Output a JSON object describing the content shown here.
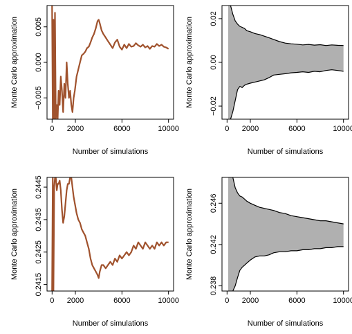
{
  "chart_data": [
    {
      "type": "line",
      "panel": "top-left",
      "xlabel": "Number of simulations",
      "ylabel": "Monte Carlo approximation",
      "xlim": [
        0,
        10000
      ],
      "ylim": [
        -0.008,
        0.008
      ],
      "xticks": [
        0,
        2000,
        6000,
        10000
      ],
      "xtick_labels": [
        "0",
        "2000",
        "6000",
        "10000"
      ],
      "yticks": [
        -0.005,
        0.0,
        0.005
      ],
      "ytick_labels": [
        "−0.005",
        "0.000",
        "0.005"
      ],
      "series": [
        {
          "color": "#A0522D",
          "x": [
            0,
            60,
            120,
            180,
            250,
            320,
            400,
            480,
            560,
            650,
            750,
            850,
            950,
            1050,
            1150,
            1250,
            1350,
            1450,
            1550,
            1650,
            1750,
            1850,
            1950,
            2100,
            2250,
            2400,
            2550,
            2700,
            2850,
            3000,
            3150,
            3300,
            3450,
            3600,
            3750,
            3900,
            4000,
            4100,
            4250,
            4400,
            4600,
            4800,
            5000,
            5200,
            5400,
            5600,
            5800,
            6000,
            6200,
            6400,
            6600,
            6800,
            7000,
            7200,
            7400,
            7600,
            7800,
            8000,
            8200,
            8400,
            8600,
            8800,
            9000,
            9200,
            9400,
            9600,
            9800,
            10000
          ],
          "values": [
            0.008,
            -0.008,
            0.006,
            -0.008,
            0.007,
            -0.008,
            -0.006,
            -0.008,
            -0.004,
            -0.006,
            -0.002,
            -0.004,
            -0.007,
            -0.003,
            -0.005,
            0.0,
            -0.003,
            -0.005,
            -0.004,
            -0.006,
            -0.007,
            -0.005,
            -0.004,
            -0.002,
            -0.001,
            0.0,
            0.001,
            0.0012,
            0.0015,
            0.002,
            0.0022,
            0.0028,
            0.0035,
            0.004,
            0.0048,
            0.0058,
            0.006,
            0.0055,
            0.0045,
            0.004,
            0.0035,
            0.003,
            0.0025,
            0.002,
            0.0028,
            0.0032,
            0.0022,
            0.0018,
            0.0025,
            0.002,
            0.0026,
            0.0022,
            0.0023,
            0.0027,
            0.0024,
            0.0022,
            0.0025,
            0.0021,
            0.0023,
            0.0019,
            0.0023,
            0.0022,
            0.0026,
            0.0023,
            0.0025,
            0.0022,
            0.0021,
            0.0019
          ]
        }
      ]
    },
    {
      "type": "area",
      "panel": "top-right",
      "xlabel": "Number of simulations",
      "ylabel": "Monte Carlo approximation",
      "xlim": [
        0,
        10000
      ],
      "ylim": [
        -0.026,
        0.026
      ],
      "xticks": [
        0,
        2000,
        6000,
        10000
      ],
      "xtick_labels": [
        "0",
        "2000",
        "6000",
        "10000"
      ],
      "yticks": [
        -0.02,
        0.0,
        0.02
      ],
      "ytick_labels": [
        "−0.02",
        "0.00",
        "0.02"
      ],
      "band": {
        "fill": "#B0B0B0",
        "x": [
          100,
          300,
          500,
          700,
          900,
          1100,
          1300,
          1500,
          1700,
          2000,
          2400,
          2800,
          3200,
          3600,
          4000,
          4500,
          5000,
          5500,
          6000,
          6500,
          7000,
          7500,
          8000,
          8500,
          9000,
          9500,
          10000
        ],
        "upper": [
          0.03,
          0.026,
          0.022,
          0.019,
          0.0175,
          0.0165,
          0.016,
          0.0155,
          0.0145,
          0.014,
          0.0132,
          0.0127,
          0.012,
          0.0113,
          0.0105,
          0.0095,
          0.0088,
          0.0085,
          0.0083,
          0.008,
          0.0082,
          0.0079,
          0.0081,
          0.0077,
          0.008,
          0.0078,
          0.0077
        ],
        "lower": [
          -0.03,
          -0.026,
          -0.0225,
          -0.0175,
          -0.0125,
          -0.011,
          -0.0115,
          -0.0105,
          -0.01,
          -0.0095,
          -0.009,
          -0.0085,
          -0.008,
          -0.007,
          -0.0058,
          -0.0055,
          -0.0052,
          -0.0048,
          -0.0046,
          -0.0043,
          -0.0046,
          -0.0041,
          -0.0043,
          -0.0037,
          -0.0034,
          -0.0037,
          -0.0041
        ]
      }
    },
    {
      "type": "line",
      "panel": "bottom-left",
      "xlabel": "Number of simulations",
      "ylabel": "Monte Carlo approximation",
      "xlim": [
        0,
        10000
      ],
      "ylim": [
        0.2413,
        0.2448
      ],
      "xticks": [
        0,
        2000,
        6000,
        10000
      ],
      "xtick_labels": [
        "0",
        "2000",
        "6000",
        "10000"
      ],
      "yticks": [
        0.2415,
        0.2425,
        0.2435,
        0.2445
      ],
      "ytick_labels": [
        "0.2415",
        "0.2425",
        "0.2435",
        "0.2445"
      ],
      "series": [
        {
          "color": "#A0522D",
          "x": [
            0,
            60,
            120,
            180,
            250,
            320,
            400,
            480,
            560,
            650,
            750,
            850,
            950,
            1050,
            1150,
            1250,
            1350,
            1450,
            1550,
            1650,
            1750,
            1850,
            1950,
            2100,
            2250,
            2400,
            2550,
            2700,
            2850,
            3000,
            3150,
            3300,
            3450,
            3600,
            3750,
            3900,
            4000,
            4100,
            4250,
            4400,
            4600,
            4800,
            5000,
            5200,
            5400,
            5600,
            5800,
            6000,
            6200,
            6400,
            6600,
            6800,
            7000,
            7200,
            7400,
            7600,
            7800,
            8000,
            8200,
            8400,
            8600,
            8800,
            9000,
            9200,
            9400,
            9600,
            9800,
            10000
          ],
          "values": [
            0.2413,
            0.2448,
            0.2413,
            0.2445,
            0.2448,
            0.2448,
            0.2444,
            0.2446,
            0.2446,
            0.2447,
            0.2444,
            0.2438,
            0.2434,
            0.2436,
            0.244,
            0.2444,
            0.2446,
            0.2446,
            0.2448,
            0.2448,
            0.2445,
            0.2442,
            0.244,
            0.2437,
            0.2435,
            0.2434,
            0.2432,
            0.2431,
            0.243,
            0.2428,
            0.2426,
            0.2423,
            0.2421,
            0.242,
            0.2419,
            0.2418,
            0.2417,
            0.2419,
            0.2421,
            0.2421,
            0.242,
            0.2421,
            0.2422,
            0.2421,
            0.2423,
            0.2422,
            0.2424,
            0.2423,
            0.2424,
            0.2425,
            0.2424,
            0.2425,
            0.2427,
            0.2426,
            0.2428,
            0.2427,
            0.2426,
            0.2428,
            0.2427,
            0.2426,
            0.2427,
            0.2426,
            0.2428,
            0.2427,
            0.2428,
            0.2427,
            0.2428,
            0.2428
          ]
        }
      ]
    },
    {
      "type": "area",
      "panel": "bottom-right",
      "xlabel": "Number of simulations",
      "ylabel": "Monte Carlo approximation",
      "xlim": [
        0,
        10000
      ],
      "ylim": [
        0.2375,
        0.2485
      ],
      "xticks": [
        0,
        2000,
        6000,
        10000
      ],
      "xtick_labels": [
        "0",
        "2000",
        "6000",
        "10000"
      ],
      "yticks": [
        0.238,
        0.242,
        0.246
      ],
      "ytick_labels": [
        "0.238",
        "0.242",
        "0.246"
      ],
      "band": {
        "fill": "#B0B0B0",
        "x": [
          100,
          300,
          500,
          700,
          900,
          1100,
          1300,
          1500,
          1700,
          2000,
          2400,
          2800,
          3200,
          3600,
          4000,
          4500,
          5000,
          5500,
          6000,
          6500,
          7000,
          7500,
          8000,
          8500,
          9000,
          9500,
          10000
        ],
        "upper": [
          0.2495,
          0.249,
          0.2485,
          0.2475,
          0.247,
          0.2467,
          0.2466,
          0.2464,
          0.2462,
          0.246,
          0.2458,
          0.2456,
          0.2455,
          0.2454,
          0.2453,
          0.2451,
          0.245,
          0.2448,
          0.2447,
          0.2446,
          0.2445,
          0.2444,
          0.2443,
          0.2443,
          0.2442,
          0.2441,
          0.244
        ],
        "lower": [
          0.2365,
          0.237,
          0.2375,
          0.238,
          0.2388,
          0.2395,
          0.2398,
          0.24,
          0.2402,
          0.2405,
          0.2408,
          0.2409,
          0.2409,
          0.241,
          0.2412,
          0.2413,
          0.2413,
          0.2414,
          0.2414,
          0.2415,
          0.2415,
          0.2416,
          0.2416,
          0.2417,
          0.2417,
          0.2418,
          0.2418
        ]
      }
    }
  ]
}
